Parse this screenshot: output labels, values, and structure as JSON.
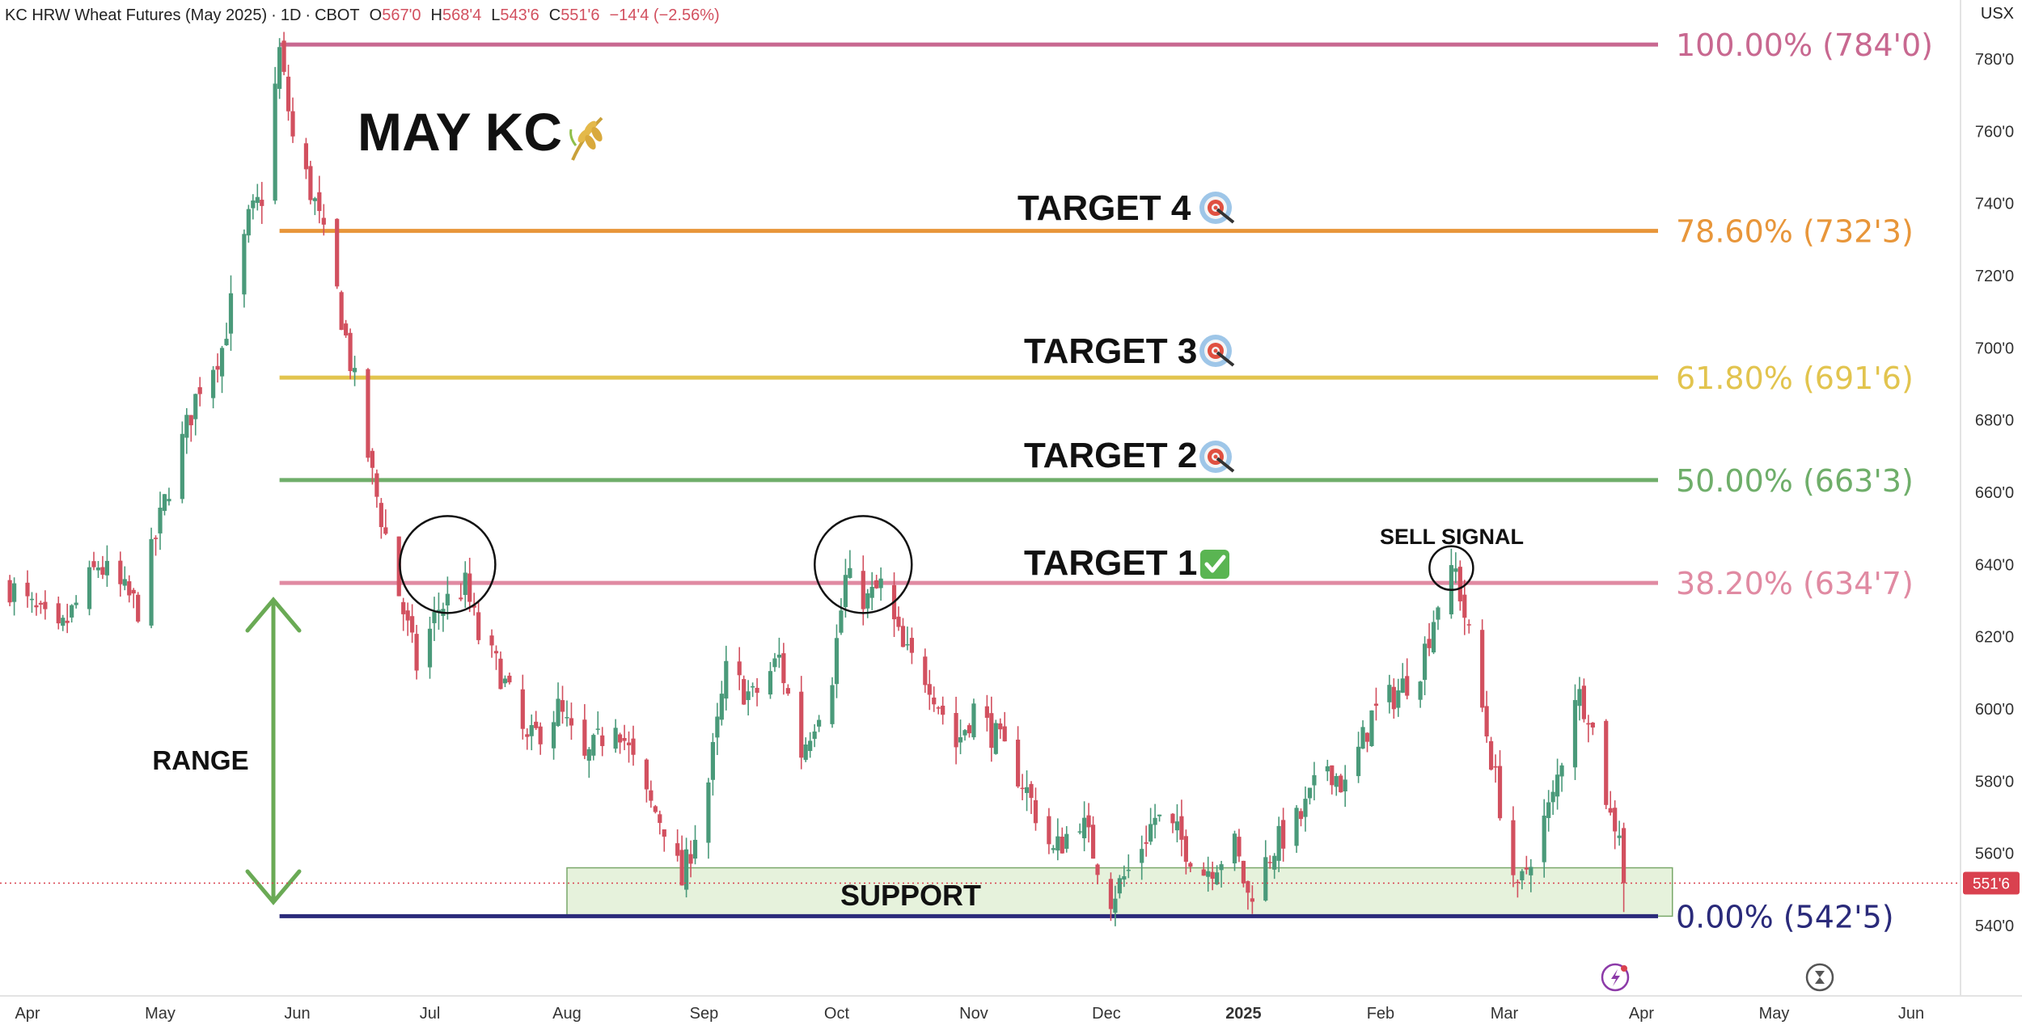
{
  "header": {
    "symbol_title": "KC HRW Wheat Futures (May 2025)",
    "interval": "1D",
    "exchange": "CBOT",
    "open_label": "O",
    "open_value": "567'0",
    "high_label": "H",
    "high_value": "568'4",
    "low_label": "L",
    "low_value": "543'6",
    "close_label": "C",
    "close_value": "551'6",
    "change": "−14'4 (−2.56%)",
    "currency": "USX"
  },
  "colors": {
    "up": "#4a9a7a",
    "down": "#d2505f",
    "fib100": "#c86890",
    "fib786": "#e8963a",
    "fib618": "#e2c44e",
    "fib50": "#6fae6a",
    "fib382": "#e08aa2",
    "fib0": "#2a2a7a",
    "support_fill": "#e6f2dc",
    "support_stroke": "#7aa86a",
    "range_arrow": "#6aaa55",
    "price_tag": "#d9414f"
  },
  "chart_data": {
    "type": "candlestick",
    "title": "MAY KC",
    "title_icon": "wheat-icon",
    "x_ticks": [
      "Apr",
      "May",
      "Jun",
      "Jul",
      "Aug",
      "Sep",
      "Oct",
      "Nov",
      "Dec",
      "2025",
      "Feb",
      "Mar",
      "Apr",
      "May",
      "Jun"
    ],
    "y_ticks": [
      "780'0",
      "760'0",
      "740'0",
      "720'0",
      "700'0",
      "680'0",
      "660'0",
      "640'0",
      "620'0",
      "600'0",
      "580'0",
      "560'0",
      "540'0"
    ],
    "y_tick_values": [
      780,
      760,
      740,
      720,
      700,
      680,
      660,
      640,
      620,
      600,
      580,
      560,
      540
    ],
    "ylim": [
      528,
      790
    ],
    "last_price": 551.75,
    "last_price_label": "551'6",
    "fib_levels": [
      {
        "label": "100.00% (784'0)",
        "value": 784.0,
        "color_key": "fib100"
      },
      {
        "label": "78.60% (732'3)",
        "value": 732.4,
        "color_key": "fib786"
      },
      {
        "label": "61.80% (691'6)",
        "value": 691.75,
        "color_key": "fib618"
      },
      {
        "label": "50.00% (663'3)",
        "value": 663.4,
        "color_key": "fib50"
      },
      {
        "label": "38.20% (634'7)",
        "value": 634.9,
        "color_key": "fib382"
      },
      {
        "label": "0.00% (542'5)",
        "value": 542.6,
        "color_key": "fib0"
      }
    ],
    "targets": [
      {
        "label": "TARGET 4",
        "icon": "target-icon",
        "level": 732.4
      },
      {
        "label": "TARGET 3",
        "icon": "target-icon",
        "level": 691.75
      },
      {
        "label": "TARGET 2",
        "icon": "target-icon",
        "level": 663.4
      },
      {
        "label": "TARGET 1",
        "icon": "check-icon",
        "level": 634.9
      }
    ],
    "annotations": {
      "sell_signal": "SELL SIGNAL",
      "range": "RANGE",
      "support": "SUPPORT",
      "support_zone": [
        542.6,
        556.0
      ]
    },
    "highlight_circles": [
      "2024-07-05",
      "2024-10-07",
      "2025-02-17"
    ],
    "anchors": [
      [
        "2024-03-28",
        634
      ],
      [
        "2024-04-08",
        620
      ],
      [
        "2024-04-17",
        640
      ],
      [
        "2024-04-26",
        628
      ],
      [
        "2024-05-03",
        662
      ],
      [
        "2024-05-10",
        690
      ],
      [
        "2024-05-15",
        700
      ],
      [
        "2024-05-21",
        735
      ],
      [
        "2024-05-24",
        742
      ],
      [
        "2024-05-28",
        782
      ],
      [
        "2024-05-31",
        758
      ],
      [
        "2024-06-05",
        740
      ],
      [
        "2024-06-10",
        715
      ],
      [
        "2024-06-14",
        690
      ],
      [
        "2024-06-18",
        664
      ],
      [
        "2024-06-24",
        632
      ],
      [
        "2024-06-28",
        612
      ],
      [
        "2024-07-03",
        628
      ],
      [
        "2024-07-09",
        634
      ],
      [
        "2024-07-12",
        620
      ],
      [
        "2024-07-17",
        610
      ],
      [
        "2024-07-23",
        590
      ],
      [
        "2024-07-30",
        600
      ],
      [
        "2024-08-05",
        585
      ],
      [
        "2024-08-12",
        598
      ],
      [
        "2024-08-19",
        575
      ],
      [
        "2024-08-23",
        568
      ],
      [
        "2024-08-27",
        552
      ],
      [
        "2024-09-02",
        580
      ],
      [
        "2024-09-06",
        610
      ],
      [
        "2024-09-12",
        603
      ],
      [
        "2024-09-18",
        614
      ],
      [
        "2024-09-23",
        588
      ],
      [
        "2024-09-30",
        610
      ],
      [
        "2024-10-03",
        636
      ],
      [
        "2024-10-08",
        630
      ],
      [
        "2024-10-11",
        634
      ],
      [
        "2024-10-16",
        616
      ],
      [
        "2024-10-22",
        608
      ],
      [
        "2024-10-28",
        590
      ],
      [
        "2024-11-01",
        600
      ],
      [
        "2024-11-06",
        592
      ],
      [
        "2024-11-12",
        580
      ],
      [
        "2024-11-19",
        560
      ],
      [
        "2024-11-25",
        570
      ],
      [
        "2024-12-02",
        548
      ],
      [
        "2024-12-06",
        555
      ],
      [
        "2024-12-12",
        570
      ],
      [
        "2024-12-17",
        565
      ],
      [
        "2024-12-23",
        555
      ],
      [
        "2024-12-30",
        562
      ],
      [
        "2025-01-02",
        548
      ],
      [
        "2025-01-08",
        562
      ],
      [
        "2025-01-14",
        570
      ],
      [
        "2025-01-20",
        585
      ],
      [
        "2025-01-24",
        578
      ],
      [
        "2025-01-30",
        598
      ],
      [
        "2025-02-05",
        605
      ],
      [
        "2025-02-10",
        612
      ],
      [
        "2025-02-14",
        630
      ],
      [
        "2025-02-18",
        638
      ],
      [
        "2025-02-21",
        620
      ],
      [
        "2025-02-27",
        580
      ],
      [
        "2025-03-04",
        548
      ],
      [
        "2025-03-07",
        560
      ],
      [
        "2025-03-12",
        575
      ],
      [
        "2025-03-17",
        605
      ],
      [
        "2025-03-20",
        600
      ],
      [
        "2025-03-25",
        570
      ],
      [
        "2025-03-27",
        567
      ],
      [
        "2025-03-28",
        551.75
      ]
    ]
  }
}
